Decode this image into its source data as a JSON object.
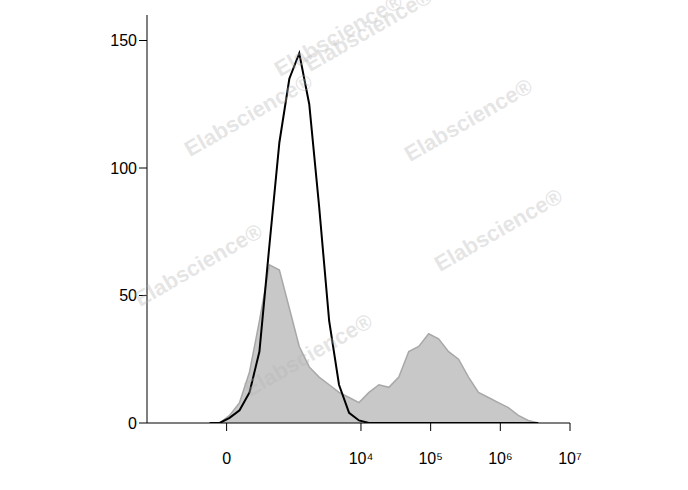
{
  "chart_data": {
    "type": "histogram",
    "log": "x",
    "x": [
      -139,
      -55,
      23,
      104,
      196,
      309,
      458,
      654,
      923,
      1291,
      1803,
      2502,
      3493,
      4838,
      6750,
      9370,
      13030,
      18100,
      25150,
      34930,
      48540,
      67500,
      93700,
      130000,
      181000,
      251500,
      349500,
      485700,
      675000,
      938000,
      1304000,
      1812000,
      2518000,
      3500000
    ],
    "series": [
      {
        "type": "area",
        "color": "#c8c8c8",
        "values": [
          0,
          0,
          3,
          8,
          20,
          40,
          62,
          60,
          45,
          30,
          22,
          18,
          15,
          12,
          10,
          8,
          12,
          15,
          14,
          18,
          28,
          30,
          35,
          33,
          28,
          25,
          18,
          12,
          10,
          8,
          6,
          3,
          1,
          0
        ]
      },
      {
        "type": "line",
        "color": "#000000",
        "values": [
          0,
          0,
          2,
          5,
          12,
          28,
          70,
          110,
          135,
          145,
          125,
          85,
          40,
          15,
          4,
          1,
          0,
          0,
          0,
          0,
          0,
          0,
          0,
          0,
          0,
          0,
          0,
          0,
          0,
          0,
          0,
          0,
          0,
          0
        ]
      }
    ],
    "xlim": [
      -1630,
      10000000
    ],
    "xticks": [
      0,
      {
        "value": 10000,
        "label": "10⁴"
      },
      {
        "value": 100000,
        "label": "10⁵"
      },
      {
        "value": 1000000,
        "label": "10⁶"
      },
      {
        "value": 10000000,
        "label": "10⁷"
      }
    ],
    "ylim": [
      0,
      160
    ],
    "yticks": [
      0,
      50,
      100,
      150
    ],
    "annotations": [
      "Elabscience®"
    ]
  }
}
